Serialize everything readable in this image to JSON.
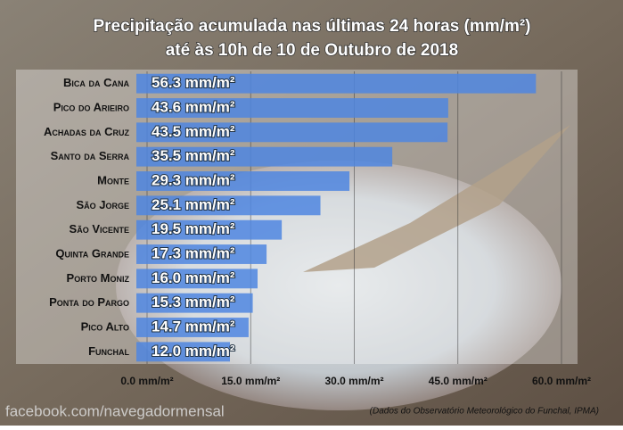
{
  "chart_data": {
    "type": "bar",
    "orientation": "horizontal",
    "title": [
      "Precipitação acumulada nas últimas 24 horas (mm/m²)",
      "até às 10h de 10 de Outubro de 2018"
    ],
    "categories": [
      "Bica da Cana",
      "Pico do Arieiro",
      "Achadas da Cruz",
      "Santo da Serra",
      "Monte",
      "São Jorge",
      "São Vicente",
      "Quinta Grande",
      "Porto Moniz",
      "Ponta do Pargo",
      "Pico Alto",
      "Funchal"
    ],
    "values": [
      56.3,
      43.6,
      43.5,
      35.5,
      29.3,
      25.1,
      19.5,
      17.3,
      16.0,
      15.3,
      14.7,
      12.0
    ],
    "value_labels": [
      "56.3 mm/m²",
      "43.6 mm/m²",
      "43.5 mm/m²",
      "35.5 mm/m²",
      "29.3 mm/m²",
      "25.1 mm/m²",
      "19.5 mm/m²",
      "17.3 mm/m²",
      "16.0 mm/m²",
      "15.3 mm/m²",
      "14.7 mm/m²",
      "12.0 mm/m²"
    ],
    "color": "#4f86e0",
    "xlim": [
      0,
      60
    ],
    "xticks": [
      {
        "value": 0,
        "label": "0.0 mm/m²"
      },
      {
        "value": 15,
        "label": "15.0 mm/m²"
      },
      {
        "value": 30,
        "label": "30.0 mm/m²"
      },
      {
        "value": 45,
        "label": "45.0 mm/m²"
      },
      {
        "value": 60,
        "label": "60.0 mm/m²"
      }
    ],
    "grid": true,
    "watermark": "facebook.com/navegadormensal",
    "source": "(Dados do Observatório Meteorológico do Funchal, IPMA)"
  }
}
